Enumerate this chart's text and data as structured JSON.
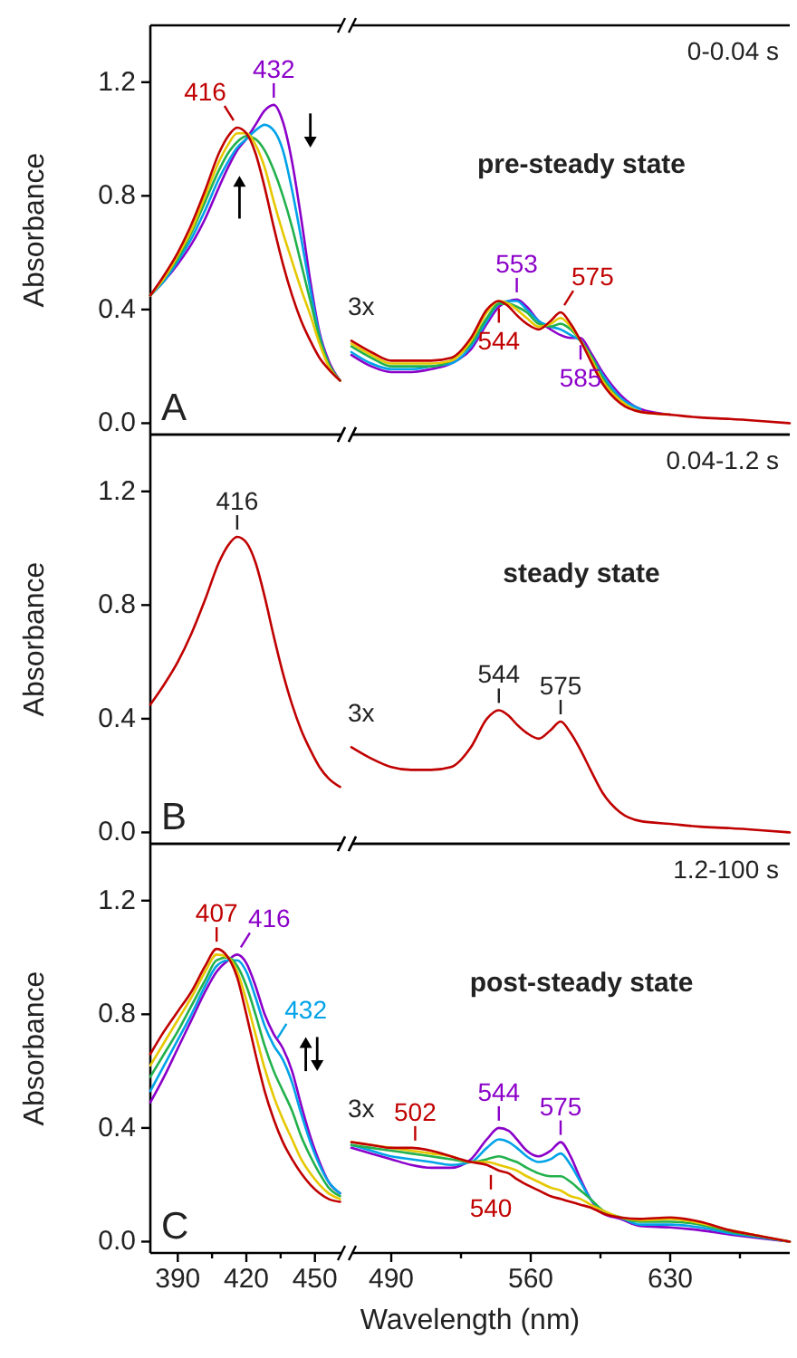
{
  "chart_data": [
    {
      "type": "line",
      "ylabel": "Absorbance",
      "xlim": [
        378,
        462
      ],
      "ylim": [
        -0.04,
        1.4
      ],
      "yticks": [
        {
          "value": 0,
          "label": "0.0"
        },
        {
          "value": 0.4,
          "label": "0.4"
        },
        {
          "value": 0.8,
          "label": "0.8"
        },
        {
          "value": 1.2,
          "label": "1.2"
        }
      ],
      "tick_labels": "y",
      "x": [
        378,
        384,
        390,
        396,
        402,
        408,
        412,
        416,
        420,
        424,
        428,
        432,
        436,
        440,
        444,
        448,
        452,
        456,
        461
      ],
      "series": [
        {
          "color": "#c00000",
          "values": [
            0.45,
            0.52,
            0.6,
            0.7,
            0.82,
            0.95,
            1.01,
            1.04,
            1.02,
            0.95,
            0.83,
            0.69,
            0.56,
            0.45,
            0.36,
            0.29,
            0.23,
            0.19,
            0.15
          ]
        },
        {
          "color": "#e6c800",
          "values": [
            0.45,
            0.51,
            0.59,
            0.68,
            0.8,
            0.92,
            0.98,
            1.02,
            1.02,
            0.98,
            0.9,
            0.78,
            0.67,
            0.57,
            0.47,
            0.38,
            0.28,
            0.2,
            0.15
          ]
        },
        {
          "color": "#22b14c",
          "values": [
            0.45,
            0.51,
            0.58,
            0.67,
            0.78,
            0.89,
            0.95,
            0.99,
            1.01,
            1.0,
            0.96,
            0.89,
            0.8,
            0.69,
            0.56,
            0.43,
            0.3,
            0.21,
            0.15
          ]
        },
        {
          "color": "#00a2e8",
          "values": [
            0.45,
            0.5,
            0.57,
            0.65,
            0.75,
            0.86,
            0.92,
            0.97,
            1.0,
            1.03,
            1.05,
            1.03,
            0.96,
            0.82,
            0.65,
            0.47,
            0.31,
            0.21,
            0.15
          ]
        },
        {
          "color": "#8b00c9",
          "values": [
            0.45,
            0.5,
            0.56,
            0.63,
            0.72,
            0.83,
            0.9,
            0.96,
            1.0,
            1.05,
            1.1,
            1.12,
            1.06,
            0.92,
            0.72,
            0.5,
            0.32,
            0.22,
            0.15
          ]
        }
      ],
      "annotations": [
        "A",
        {
          "text": "416",
          "x": 416,
          "y": 1.04
        },
        {
          "text": "432",
          "x": 432,
          "y": 1.12
        }
      ]
    },
    {
      "type": "line",
      "xlim": [
        470,
        690
      ],
      "ylim": [
        -0.04,
        1.4
      ],
      "tick_labels": false,
      "x": [
        470,
        480,
        490,
        500,
        510,
        520,
        530,
        538,
        544,
        549,
        553,
        558,
        564,
        570,
        575,
        580,
        585,
        590,
        596,
        605,
        615,
        630,
        645,
        660,
        675,
        690
      ],
      "series": [
        {
          "color": "#c00000",
          "values": [
            0.29,
            0.25,
            0.22,
            0.22,
            0.22,
            0.23,
            0.3,
            0.4,
            0.43,
            0.41,
            0.38,
            0.35,
            0.33,
            0.36,
            0.39,
            0.35,
            0.29,
            0.22,
            0.14,
            0.07,
            0.04,
            0.03,
            0.02,
            0.015,
            0.008,
            0
          ]
        },
        {
          "color": "#e6c800",
          "values": [
            0.28,
            0.24,
            0.21,
            0.21,
            0.21,
            0.22,
            0.29,
            0.39,
            0.43,
            0.42,
            0.4,
            0.37,
            0.34,
            0.35,
            0.37,
            0.34,
            0.29,
            0.23,
            0.15,
            0.08,
            0.04,
            0.03,
            null,
            null,
            null,
            null
          ]
        },
        {
          "color": "#22b14c",
          "values": [
            0.27,
            0.23,
            0.2,
            0.2,
            0.2,
            0.22,
            0.28,
            0.37,
            0.42,
            0.42,
            0.41,
            0.39,
            0.35,
            0.34,
            0.35,
            0.33,
            0.29,
            0.24,
            0.16,
            0.08,
            0.04,
            null,
            null,
            null,
            null,
            null
          ]
        },
        {
          "color": "#00a2e8",
          "values": [
            0.25,
            0.21,
            0.19,
            0.19,
            0.2,
            0.21,
            0.27,
            0.36,
            0.42,
            0.43,
            0.43,
            0.4,
            0.36,
            0.34,
            0.33,
            0.31,
            0.29,
            0.24,
            0.17,
            0.09,
            0.05,
            null,
            null,
            null,
            null,
            null
          ]
        },
        {
          "color": "#8b00c9",
          "values": [
            0.24,
            0.2,
            0.18,
            0.18,
            0.19,
            0.21,
            0.26,
            0.35,
            0.41,
            0.43,
            0.435,
            0.41,
            0.36,
            0.33,
            0.31,
            0.3,
            0.3,
            0.25,
            0.18,
            0.1,
            0.05,
            0.03,
            null,
            null,
            null,
            null
          ]
        }
      ],
      "annotations": [
        "0-0.04 s",
        "pre-steady state",
        "3x",
        {
          "text": "544",
          "x": 544,
          "y": 0.43
        },
        {
          "text": "553",
          "x": 553,
          "y": 0.435
        },
        {
          "text": "575",
          "x": 575,
          "y": 0.39
        },
        {
          "text": "585",
          "x": 585,
          "y": 0.3
        }
      ]
    },
    {
      "type": "line",
      "ylabel": "Absorbance",
      "xlim": [
        378,
        462
      ],
      "ylim": [
        -0.04,
        1.4
      ],
      "yticks": [
        {
          "value": 0,
          "label": "0.0"
        },
        {
          "value": 0.4,
          "label": "0.4"
        },
        {
          "value": 0.8,
          "label": "0.8"
        },
        {
          "value": 1.2,
          "label": "1.2"
        }
      ],
      "tick_labels": "y",
      "x": [
        378,
        384,
        390,
        396,
        402,
        408,
        412,
        416,
        420,
        424,
        428,
        432,
        436,
        440,
        444,
        448,
        452,
        456,
        461
      ],
      "series": [
        {
          "color": "#c00000",
          "values": [
            0.45,
            0.52,
            0.6,
            0.7,
            0.82,
            0.95,
            1.01,
            1.04,
            1.02,
            0.95,
            0.83,
            0.69,
            0.56,
            0.45,
            0.36,
            0.29,
            0.23,
            0.19,
            0.16
          ]
        }
      ],
      "annotations": [
        "B",
        {
          "text": "416",
          "x": 416,
          "y": 1.04
        }
      ]
    },
    {
      "type": "line",
      "xlim": [
        470,
        690
      ],
      "ylim": [
        -0.04,
        1.4
      ],
      "tick_labels": false,
      "x": [
        470,
        480,
        490,
        500,
        510,
        520,
        530,
        538,
        544,
        549,
        553,
        558,
        564,
        570,
        575,
        580,
        585,
        590,
        596,
        605,
        615,
        630,
        645,
        660,
        675,
        690
      ],
      "series": [
        {
          "color": "#c00000",
          "values": [
            0.3,
            0.26,
            0.23,
            0.22,
            0.22,
            0.23,
            0.3,
            0.4,
            0.43,
            0.41,
            0.38,
            0.35,
            0.33,
            0.36,
            0.39,
            0.35,
            0.29,
            0.22,
            0.14,
            0.07,
            0.04,
            0.03,
            0.02,
            0.015,
            0.008,
            0
          ]
        }
      ],
      "annotations": [
        "0.04-1.2 s",
        "steady state",
        "3x",
        {
          "text": "544",
          "x": 544,
          "y": 0.43
        },
        {
          "text": "575",
          "x": 575,
          "y": 0.39
        }
      ]
    },
    {
      "type": "line",
      "ylabel": "Absorbance",
      "xlim": [
        378,
        462
      ],
      "ylim": [
        -0.04,
        1.4
      ],
      "yticks": [
        {
          "value": 0,
          "label": "0.0"
        },
        {
          "value": 0.4,
          "label": "0.4"
        },
        {
          "value": 0.8,
          "label": "0.8"
        },
        {
          "value": 1.2,
          "label": "1.2"
        }
      ],
      "xticks": [
        390,
        {
          "value": 405,
          "label": null
        },
        420,
        {
          "value": 435,
          "label": null
        },
        450
      ],
      "x": [
        378,
        384,
        390,
        396,
        402,
        407,
        412,
        416,
        420,
        424,
        428,
        432,
        436,
        440,
        444,
        448,
        452,
        456,
        461
      ],
      "series": [
        {
          "color": "#c00000",
          "values": [
            0.66,
            0.74,
            0.81,
            0.88,
            0.97,
            1.03,
            1.0,
            0.93,
            0.8,
            0.66,
            0.53,
            0.43,
            0.35,
            0.29,
            0.24,
            0.2,
            0.17,
            0.15,
            0.14
          ]
        },
        {
          "color": "#e6c800",
          "values": [
            0.62,
            0.7,
            0.78,
            0.86,
            0.95,
            1.01,
            1.0,
            0.95,
            0.85,
            0.73,
            0.61,
            0.51,
            0.43,
            0.36,
            0.29,
            0.24,
            0.2,
            0.17,
            0.15
          ]
        },
        {
          "color": "#22b14c",
          "values": [
            0.58,
            0.66,
            0.74,
            0.83,
            0.92,
            0.99,
            1.0,
            0.97,
            0.9,
            0.8,
            0.69,
            0.6,
            0.53,
            0.46,
            0.37,
            0.3,
            0.24,
            0.19,
            0.16
          ]
        },
        {
          "color": "#00a2e8",
          "values": [
            0.53,
            0.62,
            0.71,
            0.8,
            0.9,
            0.97,
            0.99,
            0.99,
            0.95,
            0.86,
            0.76,
            0.69,
            0.64,
            0.56,
            0.45,
            0.35,
            0.27,
            0.21,
            0.17
          ]
        },
        {
          "color": "#8b00c9",
          "values": [
            0.49,
            0.58,
            0.68,
            0.78,
            0.88,
            0.95,
            0.99,
            1.01,
            0.98,
            0.9,
            0.8,
            0.73,
            0.68,
            0.6,
            0.48,
            0.37,
            0.28,
            0.21,
            0.17
          ]
        }
      ],
      "annotations": [
        "C",
        {
          "text": "407",
          "x": 407,
          "y": 1.03
        },
        {
          "text": "416",
          "x": 416,
          "y": 1.01
        },
        {
          "text": "432",
          "x": 432,
          "y": 0.69
        }
      ]
    },
    {
      "type": "line",
      "xlabel": "Wavelength (nm)",
      "xlim": [
        470,
        690
      ],
      "ylim": [
        -0.04,
        1.4
      ],
      "tick_labels": "x",
      "xticks": [
        490,
        {
          "value": 525,
          "label": null
        },
        560,
        {
          "value": 595,
          "label": null
        },
        630,
        {
          "value": 665,
          "label": null
        }
      ],
      "x": [
        470,
        480,
        490,
        500,
        510,
        520,
        530,
        538,
        544,
        549,
        553,
        558,
        564,
        570,
        575,
        580,
        585,
        590,
        596,
        605,
        615,
        630,
        645,
        660,
        675,
        690
      ],
      "series": [
        {
          "color": "#c00000",
          "values": [
            0.35,
            0.34,
            0.33,
            0.33,
            0.32,
            0.3,
            0.28,
            0.27,
            0.25,
            0.24,
            0.22,
            0.2,
            0.18,
            0.16,
            0.15,
            0.14,
            0.13,
            0.12,
            0.1,
            0.085,
            0.08,
            0.085,
            0.07,
            0.04,
            0.02,
            0
          ]
        },
        {
          "color": "#e6c800",
          "values": [
            0.35,
            0.34,
            0.33,
            0.32,
            0.31,
            0.3,
            0.28,
            0.28,
            0.27,
            0.26,
            0.25,
            0.23,
            0.21,
            0.19,
            0.18,
            0.16,
            0.15,
            0.13,
            0.11,
            0.085,
            0.075,
            0.08,
            0.065,
            0.04,
            0.02,
            0
          ]
        },
        {
          "color": "#22b14c",
          "values": [
            0.34,
            0.33,
            0.32,
            0.31,
            0.3,
            0.29,
            0.28,
            0.29,
            0.3,
            0.29,
            0.28,
            0.26,
            0.24,
            0.23,
            0.23,
            0.21,
            0.18,
            0.15,
            0.11,
            0.085,
            0.07,
            0.07,
            0.06,
            0.035,
            0.018,
            0
          ]
        },
        {
          "color": "#00a2e8",
          "values": [
            0.34,
            0.32,
            0.3,
            0.29,
            0.28,
            0.27,
            0.28,
            0.33,
            0.36,
            0.35,
            0.33,
            0.3,
            0.28,
            0.29,
            0.31,
            0.27,
            0.21,
            0.15,
            0.11,
            0.085,
            0.06,
            0.06,
            0.05,
            0.03,
            0.015,
            0
          ]
        },
        {
          "color": "#8b00c9",
          "values": [
            0.33,
            0.31,
            0.29,
            0.27,
            0.26,
            0.26,
            0.29,
            0.36,
            0.4,
            0.39,
            0.36,
            0.32,
            0.3,
            0.32,
            0.35,
            0.3,
            0.22,
            0.15,
            0.1,
            0.08,
            0.055,
            0.05,
            0.04,
            0.025,
            0.012,
            0
          ]
        }
      ],
      "annotations": [
        "1.2-100 s",
        "post-steady state",
        "3x",
        {
          "text": "502",
          "x": 502,
          "y": 0.33
        },
        {
          "text": "544",
          "x": 544,
          "y": 0.4
        },
        {
          "text": "575",
          "x": 575,
          "y": 0.35
        },
        {
          "text": "540",
          "x": 540,
          "y": 0.26
        }
      ]
    }
  ]
}
